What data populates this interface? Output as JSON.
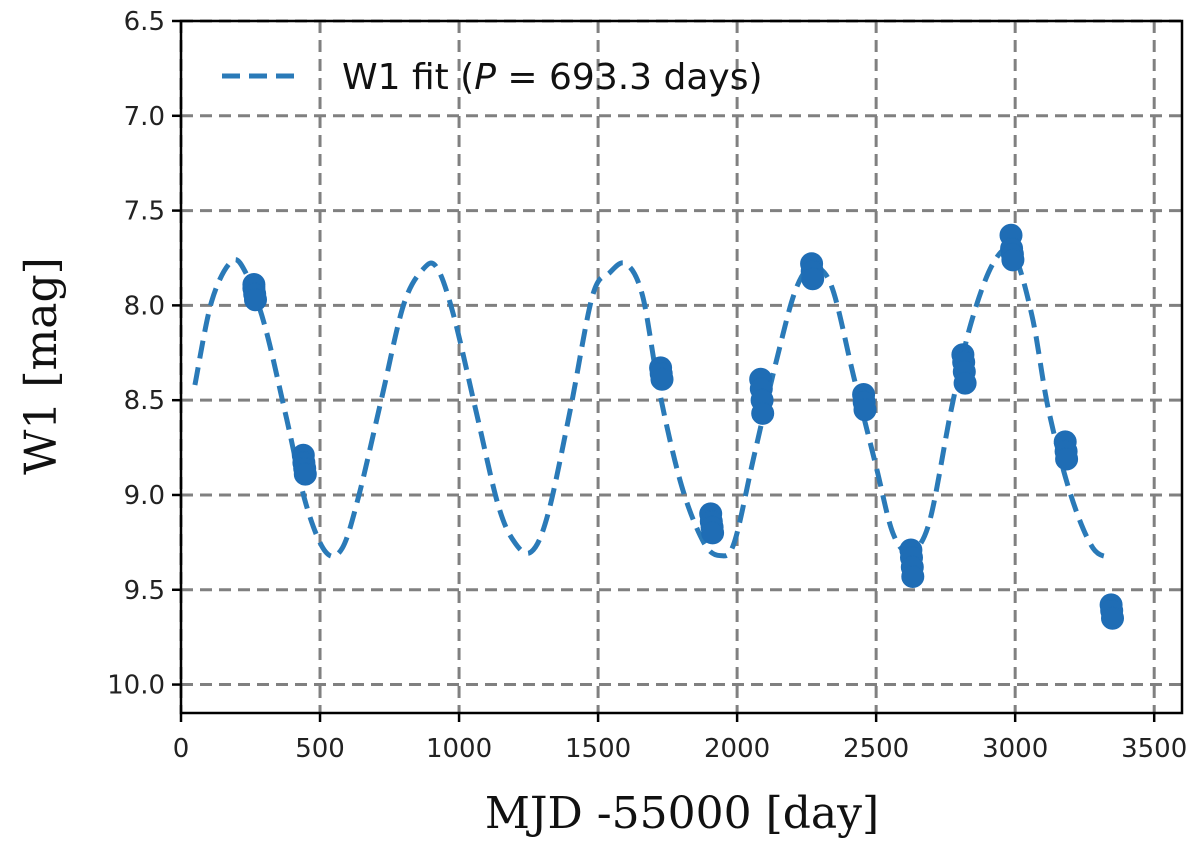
{
  "chart_data": {
    "type": "scatter",
    "xlabel": "MJD -55000 [day]",
    "ylabel": "W1 [mag]",
    "xlim": [
      0,
      3600
    ],
    "ylim": [
      10.15,
      6.5
    ],
    "y_inverted": true,
    "xticks": [
      "0",
      "500",
      "1000",
      "1500",
      "2000",
      "2500",
      "3000",
      "3500"
    ],
    "yticks": [
      "6.5",
      "7.0",
      "7.5",
      "8.0",
      "8.5",
      "9.0",
      "9.5",
      "10.0"
    ],
    "grid": true,
    "legend": {
      "position": "top-left",
      "label_prefix": "W1 fit (",
      "label_var": "P",
      "label_value": " = 693.3 days)"
    },
    "colors": {
      "series": "#1f6db5",
      "fit": "#2a7ab8",
      "grid": "#808080"
    },
    "fit": {
      "name": "W1 fit (P = 693.3 days)",
      "period": 693.3,
      "x": [
        50,
        110,
        180,
        230,
        300,
        380,
        450,
        520,
        580,
        640,
        720,
        800,
        870,
        920,
        980,
        1060,
        1140,
        1200,
        1260,
        1320,
        1400,
        1480,
        1540,
        1600,
        1660,
        1720,
        1800,
        1880,
        1940,
        1990,
        2060,
        2140,
        2210,
        2270,
        2340,
        2420,
        2500,
        2560,
        2620,
        2690,
        2770,
        2840,
        2920,
        2990,
        3060,
        3120,
        3200,
        3280,
        3350
      ],
      "y": [
        8.42,
        7.98,
        7.77,
        7.82,
        8.1,
        8.6,
        9.05,
        9.3,
        9.28,
        9.0,
        8.5,
        8.0,
        7.81,
        7.8,
        8.05,
        8.55,
        9.05,
        9.25,
        9.3,
        9.1,
        8.55,
        7.95,
        7.83,
        7.78,
        7.95,
        8.45,
        8.95,
        9.25,
        9.32,
        9.25,
        8.8,
        8.3,
        7.92,
        7.8,
        7.9,
        8.38,
        8.85,
        9.2,
        9.3,
        9.15,
        8.55,
        8.1,
        7.78,
        7.72,
        8.05,
        8.55,
        9.0,
        9.28,
        9.33
      ]
    },
    "series": [
      {
        "name": "W1",
        "x": [
          262,
          262,
          265,
          268,
          440,
          442,
          445,
          447,
          1725,
          1727,
          1730,
          1905,
          1907,
          1910,
          1912,
          2085,
          2087,
          2090,
          2092,
          2268,
          2270,
          2272,
          2455,
          2457,
          2460,
          2625,
          2627,
          2630,
          2632,
          2812,
          2815,
          2817,
          2820,
          2985,
          2987,
          2990,
          2992,
          3180,
          3183,
          3185,
          3345,
          3347,
          3350
        ],
        "y": [
          7.89,
          7.91,
          7.94,
          7.97,
          8.79,
          8.83,
          8.86,
          8.89,
          8.33,
          8.36,
          8.39,
          9.1,
          9.14,
          9.17,
          9.2,
          8.39,
          8.44,
          8.5,
          8.57,
          7.78,
          7.82,
          7.86,
          8.47,
          8.51,
          8.55,
          9.29,
          9.33,
          9.38,
          9.43,
          8.26,
          8.3,
          8.35,
          8.41,
          7.63,
          7.7,
          7.73,
          7.76,
          8.72,
          8.77,
          8.81,
          9.58,
          9.61,
          9.65
        ]
      }
    ]
  }
}
